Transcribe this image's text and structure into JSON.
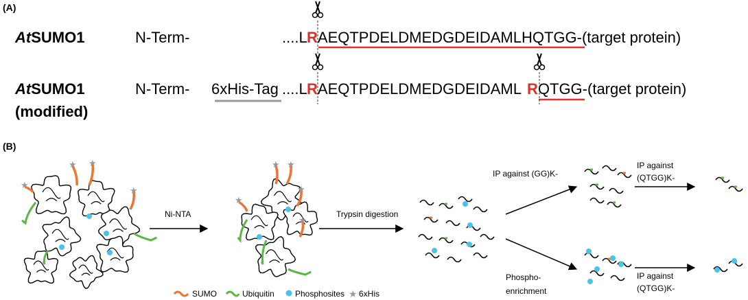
{
  "panel_a": {
    "label": "(A)",
    "rows": [
      {
        "name": {
          "italic": "At",
          "bold": "SUMO1"
        },
        "nterm": "N-Term-",
        "prefix": "....L",
        "cleave": "R",
        "seq": "AEQTPDELDMEDGDEIDAMLHQTGG-",
        "target": "(target protein)"
      },
      {
        "name": {
          "italic": "At",
          "bold": "SUMO1"
        },
        "subtitle": "(modified)",
        "nterm": "N-Term-",
        "tag": "6xHis-Tag",
        "prefix": "....L",
        "cleave": "R",
        "seq": "AEQTPDELDMEDGDEIDAML",
        "cleave2": "R",
        "seq2": "QTGG-",
        "target": "(target protein)"
      }
    ]
  },
  "panel_b": {
    "label": "(B)",
    "steps": {
      "ni_nta": "Ni-NTA",
      "trypsin": "Trypsin digestion",
      "ip_gg": "IP against (GG)K-",
      "ip_qtgg_top": [
        "IP against",
        "(QTGG)K-"
      ],
      "phospho": [
        "Phospho-",
        "enrichment"
      ],
      "ip_qtgg_bottom": [
        "IP against",
        "(QTGG)K-"
      ]
    },
    "legend": [
      "SUMO",
      "Ubiquitin",
      "Phosphosites",
      "6xHis"
    ]
  }
}
